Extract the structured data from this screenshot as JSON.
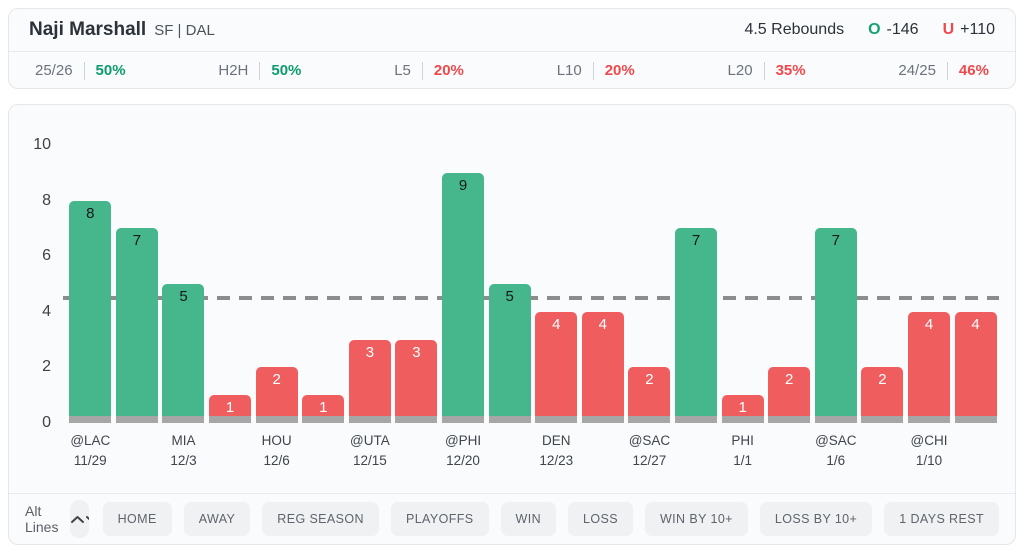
{
  "header": {
    "player_name": "Naji Marshall",
    "player_meta": "SF | DAL",
    "line_label": "4.5 Rebounds",
    "over_symbol": "O",
    "over_odds": "-146",
    "under_symbol": "U",
    "under_odds": "+110"
  },
  "stats": [
    {
      "label": "25/26",
      "value": "50%",
      "trend": "over"
    },
    {
      "label": "H2H",
      "value": "50%",
      "trend": "over"
    },
    {
      "label": "L5",
      "value": "20%",
      "trend": "under"
    },
    {
      "label": "L10",
      "value": "20%",
      "trend": "under"
    },
    {
      "label": "L20",
      "value": "35%",
      "trend": "under"
    },
    {
      "label": "24/25",
      "value": "46%",
      "trend": "under"
    }
  ],
  "chart_data": {
    "type": "bar",
    "title": "Naji Marshall rebounds by game vs 4.5 line",
    "ylim": [
      0,
      10
    ],
    "yticks": [
      0,
      2,
      4,
      6,
      8,
      10
    ],
    "line_value": 4.5,
    "legend": {
      "over_color": "#46b68c",
      "under_color": "#f05d5f"
    },
    "values": [
      8,
      7,
      5,
      1,
      2,
      1,
      3,
      3,
      9,
      5,
      4,
      4,
      2,
      7,
      1,
      2,
      7,
      2,
      4,
      4
    ],
    "games": [
      {
        "opponent": "@LAC",
        "date": "11/29",
        "value": 8
      },
      {
        "opponent": "",
        "date": "",
        "value": 7
      },
      {
        "opponent": "MIA",
        "date": "12/3",
        "value": 5
      },
      {
        "opponent": "",
        "date": "",
        "value": 1
      },
      {
        "opponent": "HOU",
        "date": "12/6",
        "value": 2
      },
      {
        "opponent": "",
        "date": "",
        "value": 1
      },
      {
        "opponent": "@UTA",
        "date": "12/15",
        "value": 3
      },
      {
        "opponent": "",
        "date": "",
        "value": 3
      },
      {
        "opponent": "@PHI",
        "date": "12/20",
        "value": 9
      },
      {
        "opponent": "",
        "date": "",
        "value": 5
      },
      {
        "opponent": "DEN",
        "date": "12/23",
        "value": 4
      },
      {
        "opponent": "",
        "date": "",
        "value": 4
      },
      {
        "opponent": "@SAC",
        "date": "12/27",
        "value": 2
      },
      {
        "opponent": "",
        "date": "",
        "value": 7
      },
      {
        "opponent": "PHI",
        "date": "1/1",
        "value": 1
      },
      {
        "opponent": "",
        "date": "",
        "value": 2
      },
      {
        "opponent": "@SAC",
        "date": "1/6",
        "value": 7
      },
      {
        "opponent": "",
        "date": "",
        "value": 2
      },
      {
        "opponent": "@CHI",
        "date": "1/10",
        "value": 4
      },
      {
        "opponent": "",
        "date": "",
        "value": 4
      }
    ]
  },
  "footer": {
    "alt_lines_label": "Alt Lines",
    "filters": [
      "HOME",
      "AWAY",
      "REG SEASON",
      "PLAYOFFS",
      "WIN",
      "LOSS",
      "WIN BY 10+",
      "LOSS BY 10+",
      "1 DAYS REST"
    ]
  },
  "colors": {
    "over_bar": "#46b68c",
    "under_bar": "#f05d5f",
    "over_text": "#0d9c6d",
    "under_text": "#f0494d",
    "bar_base": "#a6a6a6",
    "dash_line": "#8c8c8c"
  }
}
